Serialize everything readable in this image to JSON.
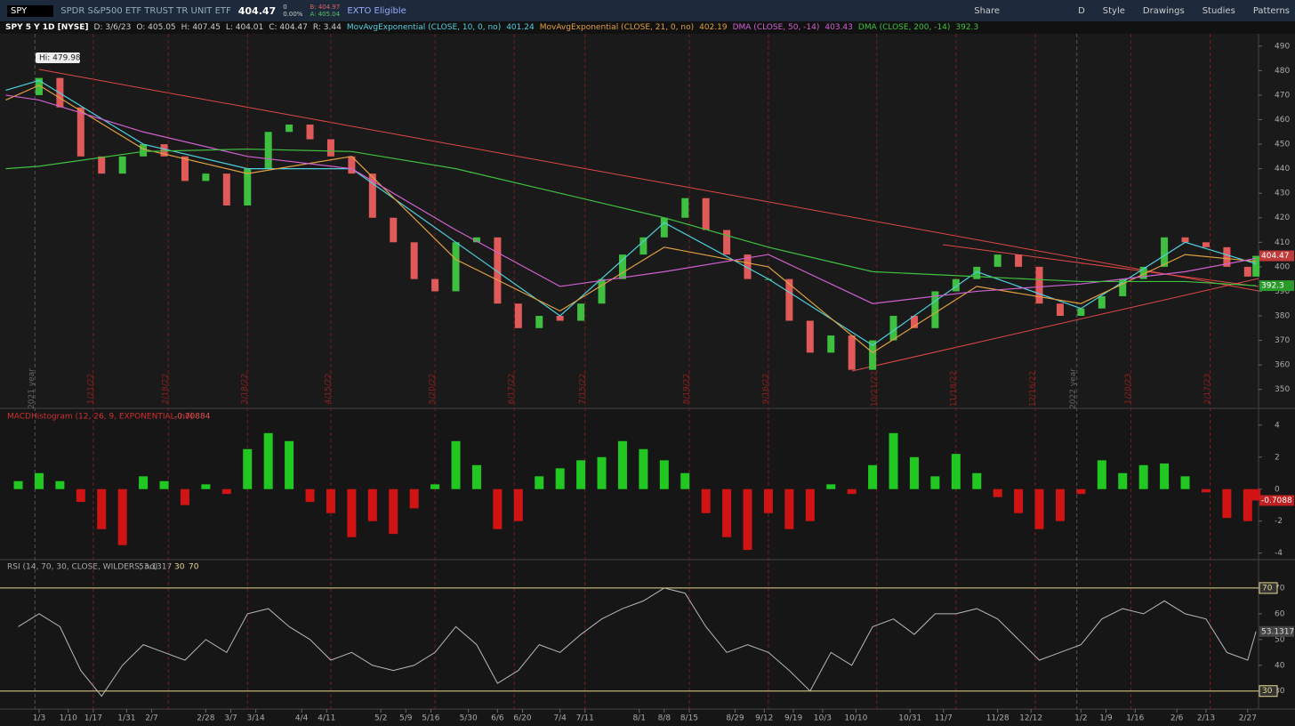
{
  "toolbar": {
    "symbol": "SPY",
    "description": "SPDR S&P500 ETF TRUST TR UNIT ETF",
    "last": "404.47",
    "change": "0",
    "change_pct": "0.00%",
    "bid": "B: 404.97",
    "ask": "A: 405.04",
    "badge": "EXTO Eligible",
    "period": "D",
    "buttons": [
      "Share",
      "Style",
      "Drawings",
      "Studies",
      "Patterns"
    ]
  },
  "legend": {
    "symbol": "SPY 5 Y 1D [NYSE]",
    "items": [
      "D: 3/6/23",
      "O: 405.05",
      "H: 407.45",
      "L: 404.01",
      "C: 404.47",
      "R: 3.44"
    ]
  },
  "chart_data": [
    {
      "type": "line",
      "annotation": "Hi: 479.98",
      "xlim": [
        -8.1,
        292.6
      ],
      "ylim": [
        343,
        495
      ],
      "yticks": [
        350,
        360,
        370,
        380,
        390,
        400,
        410,
        420,
        430,
        440,
        450,
        460,
        470,
        480,
        490
      ],
      "expirations": [
        {
          "text": "1/21/22",
          "x": 13
        },
        {
          "text": "2/18/22",
          "x": 31
        },
        {
          "text": "3/18/22",
          "x": 50
        },
        {
          "text": "4/15/22",
          "x": 70
        },
        {
          "text": "5/20/22",
          "x": 95
        },
        {
          "text": "6/17/22",
          "x": 114
        },
        {
          "text": "7/15/22",
          "x": 131
        },
        {
          "text": "8/19/22",
          "x": 156
        },
        {
          "text": "9/16/22",
          "x": 175
        },
        {
          "text": "10/21/22",
          "x": 201
        },
        {
          "text": "11/18/22",
          "x": 220
        },
        {
          "text": "12/16/22",
          "x": 239
        },
        {
          "text": "1/20/23",
          "x": 262
        },
        {
          "text": "2/17/23",
          "x": 281
        }
      ],
      "year_markers": [
        {
          "text": "2021 year",
          "x": -1
        },
        {
          "text": "2022 year",
          "x": 249
        }
      ],
      "up_color": "#3fbf3f",
      "down_color": "#e05a5a",
      "series": [
        {
          "name": "SPY 5 Y 1D [NYSE]",
          "color": "#e05a5a",
          "x": [
            -5,
            0,
            5,
            10,
            15,
            20,
            25,
            30,
            35,
            40,
            45,
            50,
            55,
            60,
            65,
            70,
            75,
            80,
            85,
            90,
            95,
            100,
            105,
            110,
            115,
            120,
            125,
            130,
            135,
            140,
            145,
            150,
            155,
            160,
            165,
            170,
            175,
            180,
            185,
            190,
            195,
            200,
            205,
            210,
            215,
            220,
            225,
            230,
            235,
            240,
            245,
            250,
            255,
            260,
            265,
            270,
            275,
            280,
            285,
            290,
            292
          ],
          "values": [
            470,
            477,
            465,
            445,
            438,
            445,
            450,
            445,
            435,
            438,
            425,
            440,
            455,
            458,
            452,
            445,
            438,
            420,
            410,
            395,
            390,
            410,
            412,
            385,
            375,
            380,
            378,
            385,
            395,
            405,
            412,
            420,
            428,
            415,
            405,
            395,
            395,
            378,
            365,
            372,
            358,
            370,
            380,
            375,
            390,
            395,
            400,
            405,
            400,
            385,
            380,
            383,
            388,
            395,
            400,
            412,
            410,
            408,
            400,
            396,
            404.47
          ]
        },
        {
          "name": "MovAvgExponential (CLOSE, 10, 0, no)",
          "color": "#4fd0e0",
          "x": [
            -8,
            0,
            25,
            50,
            75,
            100,
            125,
            150,
            175,
            200,
            225,
            250,
            275,
            292
          ],
          "values": [
            472,
            476,
            450,
            440,
            440,
            410,
            380,
            418,
            395,
            368,
            398,
            383,
            410,
            401.24
          ]
        },
        {
          "name": "MovAvgExponential (CLOSE, 21, 0, no)",
          "color": "#e0a040",
          "x": [
            -8,
            0,
            25,
            50,
            75,
            100,
            125,
            150,
            175,
            200,
            225,
            250,
            275,
            292
          ],
          "values": [
            468,
            474,
            448,
            438,
            445,
            403,
            382,
            408,
            400,
            365,
            392,
            385,
            405,
            402.19
          ]
        },
        {
          "name": "DMA (CLOSE, 50, -14)",
          "color": "#d060d0",
          "x": [
            -8,
            0,
            25,
            50,
            75,
            100,
            125,
            150,
            175,
            200,
            225,
            250,
            275,
            292
          ],
          "values": [
            470,
            468,
            455,
            445,
            440,
            415,
            392,
            398,
            405,
            385,
            390,
            393,
            398,
            403.43
          ]
        },
        {
          "name": "DMA (CLOSE, 200, -14)",
          "color": "#40c040",
          "x": [
            -8,
            0,
            25,
            50,
            75,
            100,
            125,
            150,
            175,
            200,
            225,
            250,
            275,
            292
          ],
          "values": [
            440,
            441,
            447,
            448,
            447,
            440,
            430,
            420,
            408,
            398,
            396,
            394,
            394,
            392.3
          ]
        }
      ]
    },
    {
      "type": "bar",
      "title": "MACDHistogram (12, 26, 9, EXPONENTIAL, no)",
      "legend_value": "-0.70884",
      "last_tag": "-0.7088",
      "xlim": [
        -8.1,
        292.6
      ],
      "ylim": [
        -4.35,
        4.1
      ],
      "yticks": [
        -4,
        -2,
        0,
        2,
        4
      ],
      "up_color": "#22c822",
      "down_color": "#d01414",
      "x": [
        -5,
        0,
        5,
        10,
        15,
        20,
        25,
        30,
        35,
        40,
        45,
        50,
        55,
        60,
        65,
        70,
        75,
        80,
        85,
        90,
        95,
        100,
        105,
        110,
        115,
        120,
        125,
        130,
        135,
        140,
        145,
        150,
        155,
        160,
        165,
        170,
        175,
        180,
        185,
        190,
        195,
        200,
        205,
        210,
        215,
        220,
        225,
        230,
        235,
        240,
        245,
        250,
        255,
        260,
        265,
        270,
        275,
        280,
        285,
        290,
        292
      ],
      "values": [
        0.5,
        1.0,
        0.5,
        -0.8,
        -2.5,
        -3.5,
        0.8,
        0.5,
        -1.0,
        0.3,
        -0.3,
        2.5,
        3.5,
        3.0,
        -0.8,
        -1.5,
        -3.0,
        -2.0,
        -2.8,
        -1.2,
        0.3,
        3.0,
        1.5,
        -2.5,
        -2.0,
        0.8,
        1.3,
        1.8,
        2.0,
        3.0,
        2.5,
        1.8,
        1.0,
        -1.5,
        -3.0,
        -3.8,
        -1.5,
        -2.5,
        -2.0,
        0.3,
        -0.3,
        1.5,
        3.5,
        2.0,
        0.8,
        2.2,
        1.0,
        -0.5,
        -1.5,
        -2.5,
        -2.0,
        -0.3,
        1.8,
        1.0,
        1.5,
        1.6,
        0.8,
        -0.2,
        -1.8,
        -2.0,
        -0.7088
      ]
    },
    {
      "type": "line",
      "title": "RSI (14, 70, 30, CLOSE, WILDERS, no)",
      "levels": [
        30,
        70
      ],
      "level_color": "#e8d890",
      "color": "#b8b8b8",
      "xlim": [
        -8.1,
        292.6
      ],
      "ylim": [
        23,
        75.5
      ],
      "yticks": [
        30,
        40,
        50,
        60,
        70
      ],
      "xticks": [
        {
          "value": 0,
          "label": "1/3"
        },
        {
          "value": 7,
          "label": "1/10"
        },
        {
          "value": 13,
          "label": "1/17"
        },
        {
          "value": 21,
          "label": "1/31"
        },
        {
          "value": 27,
          "label": "2/7"
        },
        {
          "value": 40,
          "label": "2/28"
        },
        {
          "value": 46,
          "label": "3/7"
        },
        {
          "value": 52,
          "label": "3/14"
        },
        {
          "value": 63,
          "label": "4/4"
        },
        {
          "value": 69,
          "label": "4/11"
        },
        {
          "value": 82,
          "label": "5/2"
        },
        {
          "value": 88,
          "label": "5/9"
        },
        {
          "value": 94,
          "label": "5/16"
        },
        {
          "value": 103,
          "label": "5/30"
        },
        {
          "value": 110,
          "label": "6/6"
        },
        {
          "value": 116,
          "label": "6/20"
        },
        {
          "value": 125,
          "label": "7/4"
        },
        {
          "value": 131,
          "label": "7/11"
        },
        {
          "value": 144,
          "label": "8/1"
        },
        {
          "value": 150,
          "label": "8/8"
        },
        {
          "value": 156,
          "label": "8/15"
        },
        {
          "value": 167,
          "label": "8/29"
        },
        {
          "value": 174,
          "label": "9/12"
        },
        {
          "value": 181,
          "label": "9/19"
        },
        {
          "value": 188,
          "label": "10/3"
        },
        {
          "value": 196,
          "label": "10/10"
        },
        {
          "value": 209,
          "label": "10/31"
        },
        {
          "value": 217,
          "label": "11/7"
        },
        {
          "value": 230,
          "label": "11/28"
        },
        {
          "value": 238,
          "label": "12/12"
        },
        {
          "value": 250,
          "label": "1/2"
        },
        {
          "value": 256,
          "label": "1/9"
        },
        {
          "value": 263,
          "label": "1/16"
        },
        {
          "value": 273,
          "label": "2/6"
        },
        {
          "value": 280,
          "label": "2/13"
        },
        {
          "value": 290,
          "label": "2/27"
        }
      ],
      "x": [
        -5,
        0,
        5,
        10,
        15,
        20,
        25,
        30,
        35,
        40,
        45,
        50,
        55,
        60,
        65,
        70,
        75,
        80,
        85,
        90,
        95,
        100,
        105,
        110,
        115,
        120,
        125,
        130,
        135,
        140,
        145,
        150,
        155,
        160,
        165,
        170,
        175,
        180,
        185,
        190,
        195,
        200,
        205,
        210,
        215,
        220,
        225,
        230,
        235,
        240,
        245,
        250,
        255,
        260,
        265,
        270,
        275,
        280,
        285,
        290,
        292
      ],
      "values": [
        55,
        60,
        55,
        38,
        28,
        40,
        48,
        45,
        42,
        50,
        45,
        60,
        62,
        55,
        50,
        42,
        45,
        40,
        38,
        40,
        45,
        55,
        48,
        33,
        38,
        48,
        45,
        52,
        58,
        62,
        65,
        70,
        68,
        55,
        45,
        48,
        45,
        38,
        30,
        45,
        40,
        55,
        58,
        52,
        60,
        60,
        62,
        58,
        50,
        42,
        45,
        48,
        58,
        62,
        60,
        65,
        60,
        58,
        45,
        42,
        53.1317
      ]
    }
  ]
}
